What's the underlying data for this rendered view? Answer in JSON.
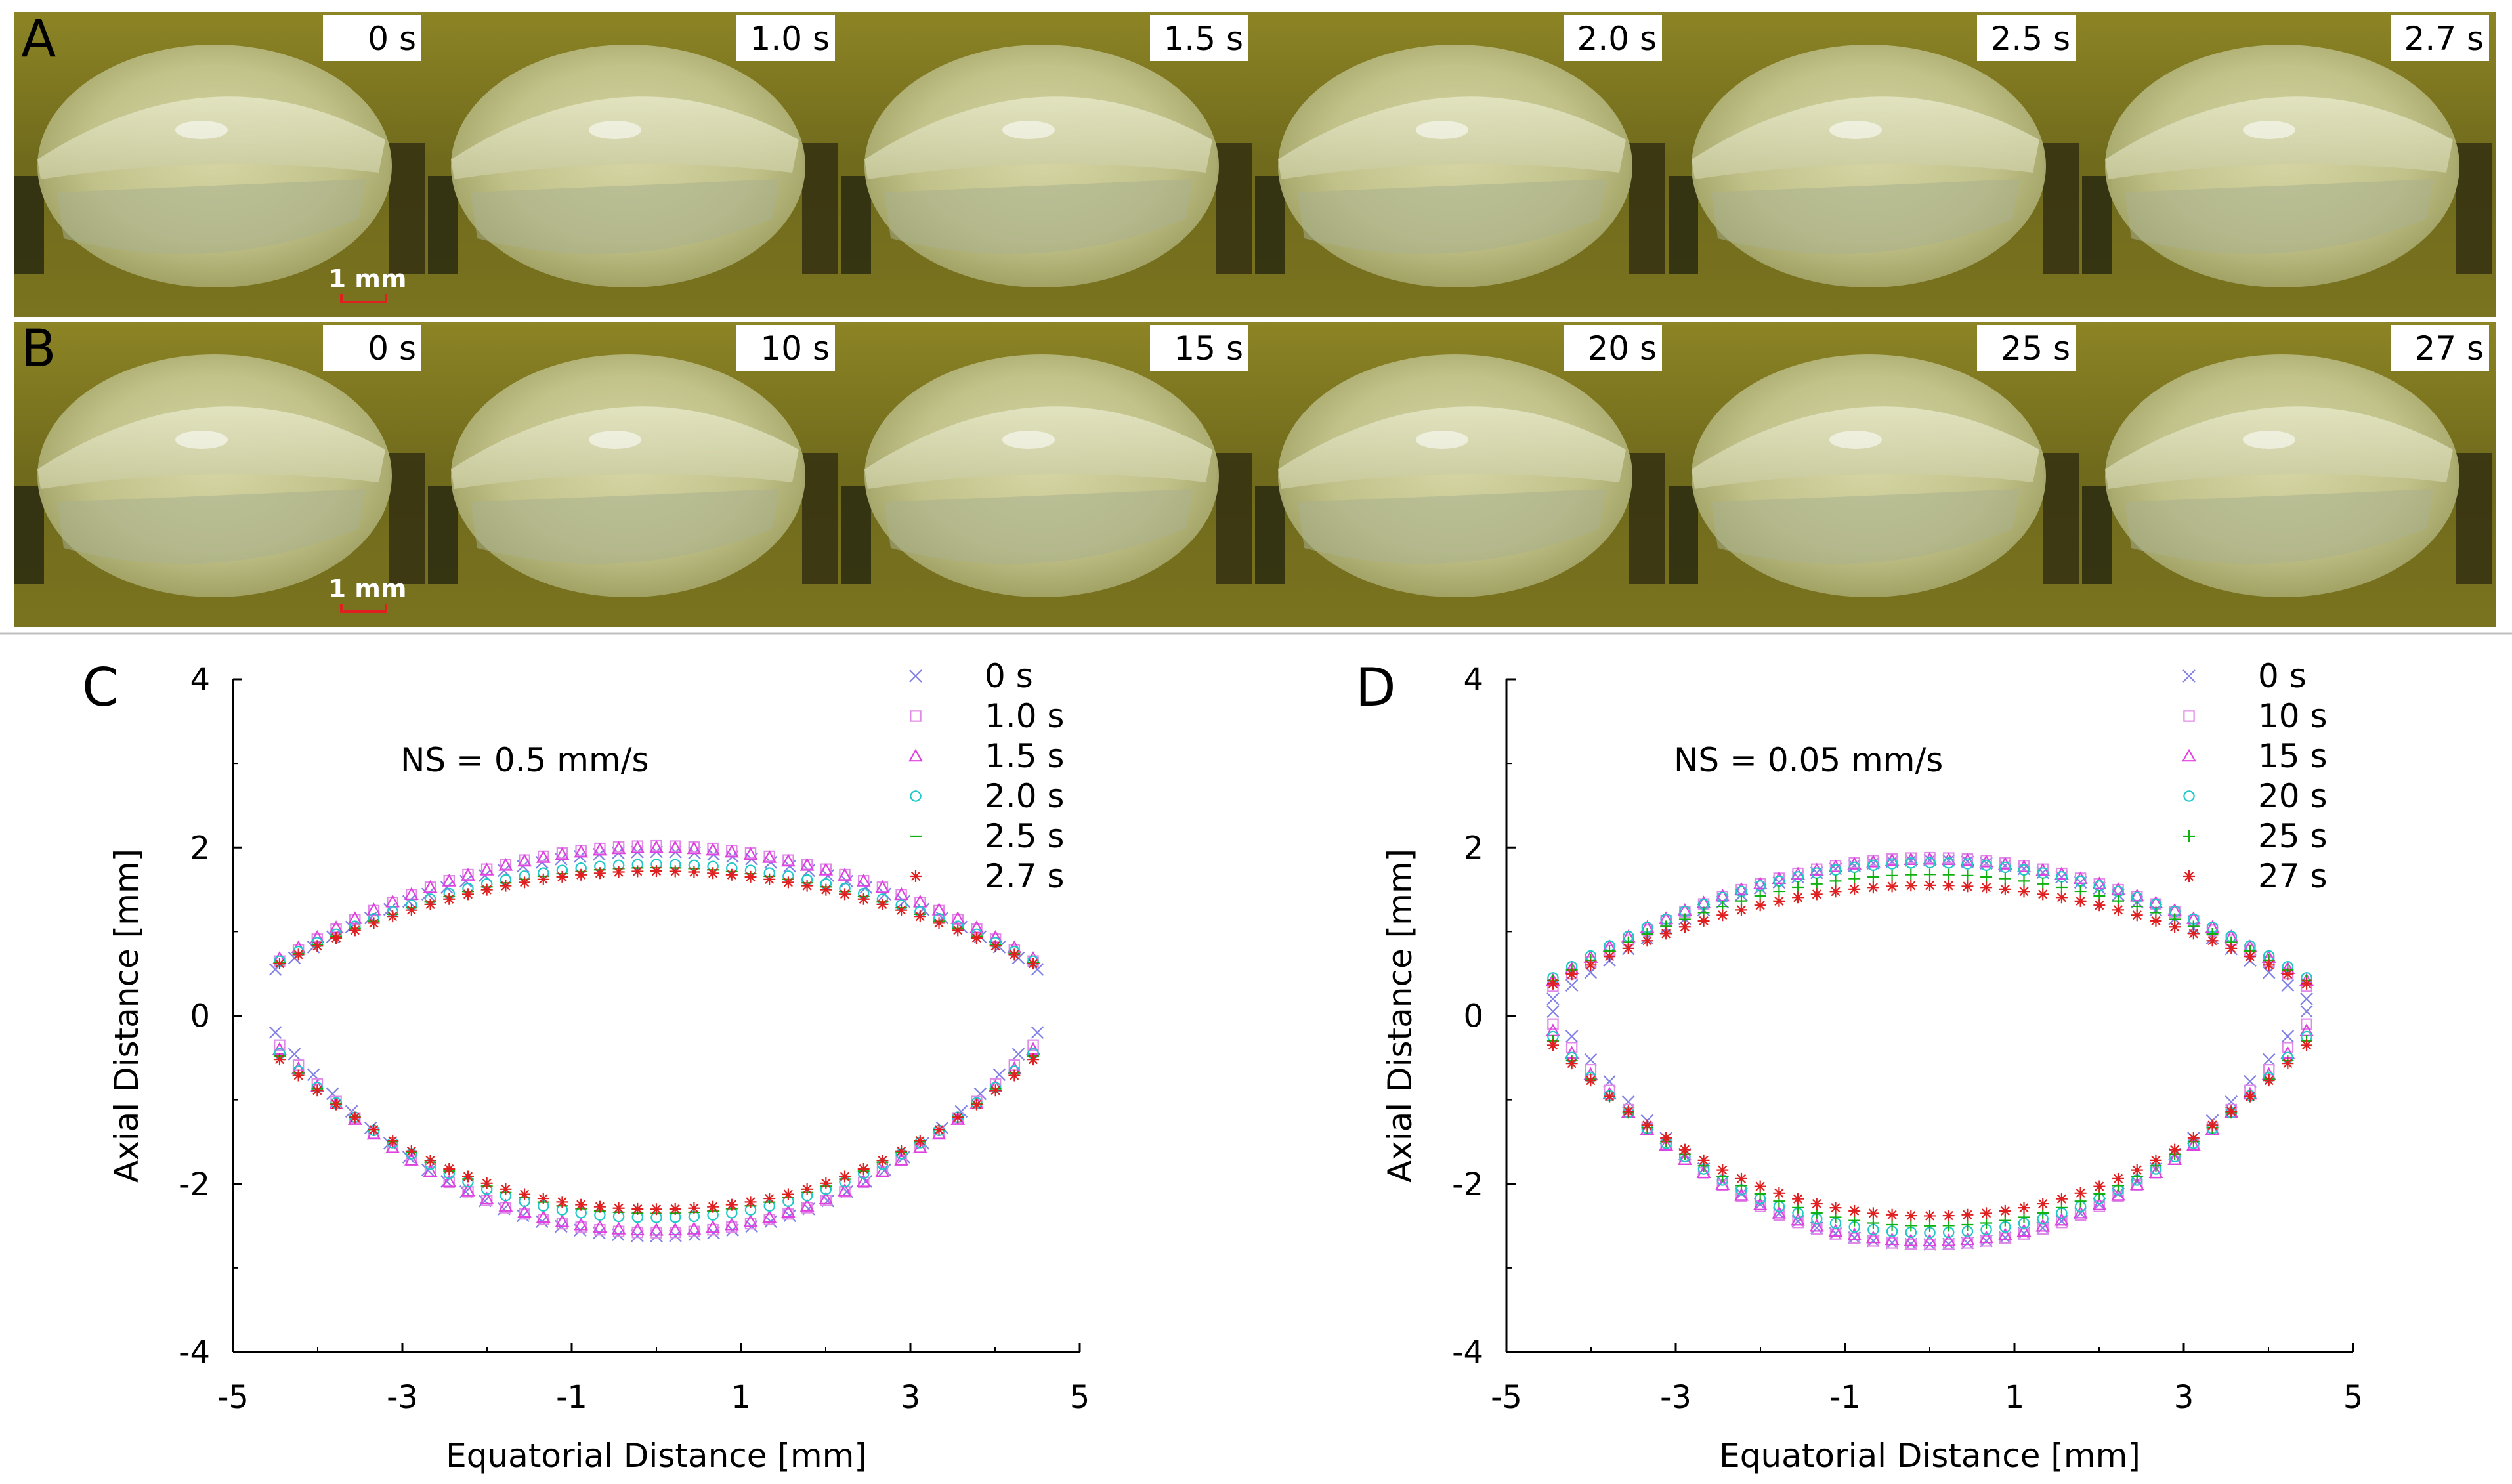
{
  "photo_rows": [
    {
      "label": "A",
      "scale_label": "1 mm",
      "frames": [
        {
          "time": "0 s"
        },
        {
          "time": "1.0 s"
        },
        {
          "time": "1.5 s"
        },
        {
          "time": "2.0 s"
        },
        {
          "time": "2.5 s"
        },
        {
          "time": "2.7 s"
        }
      ]
    },
    {
      "label": "B",
      "scale_label": "1 mm",
      "frames": [
        {
          "time": "0 s"
        },
        {
          "time": "10 s"
        },
        {
          "time": "15 s"
        },
        {
          "time": "20 s"
        },
        {
          "time": "25 s"
        },
        {
          "time": "27 s"
        }
      ]
    }
  ],
  "chart_data": [
    {
      "type": "scatter",
      "panel_label": "C",
      "annotation": "NS = 0.5 mm/s",
      "xlabel": "Equatorial Distance [mm]",
      "ylabel": "Axial Distance [mm]",
      "xlim": [
        -5,
        5
      ],
      "ylim": [
        -4,
        4
      ],
      "xticks": [
        -5,
        -3,
        -1,
        1,
        3,
        5
      ],
      "yticks": [
        -4,
        -2,
        0,
        2,
        4
      ],
      "grid": false,
      "legend_position": "top-right",
      "series": [
        {
          "name": "0 s",
          "marker": "x",
          "color": "#8080e6",
          "anterior_apex": 1.95,
          "posterior_apex": -2.62,
          "half_width": 4.5,
          "end_upper": 0.55,
          "end_lower": -0.2
        },
        {
          "name": "1.0 s",
          "marker": "square",
          "color": "#e08ae8",
          "anterior_apex": 2.02,
          "posterior_apex": -2.58,
          "half_width": 4.45,
          "end_upper": 0.65,
          "end_lower": -0.35
        },
        {
          "name": "1.5 s",
          "marker": "triangle",
          "color": "#e040e0",
          "anterior_apex": 2.0,
          "posterior_apex": -2.55,
          "half_width": 4.45,
          "end_upper": 0.68,
          "end_lower": -0.4
        },
        {
          "name": "2.0 s",
          "marker": "circle",
          "color": "#20c8c8",
          "anterior_apex": 1.8,
          "posterior_apex": -2.4,
          "half_width": 4.45,
          "end_upper": 0.65,
          "end_lower": -0.45
        },
        {
          "name": "2.5 s",
          "marker": "dash",
          "color": "#10b010",
          "anterior_apex": 1.76,
          "posterior_apex": -2.35,
          "half_width": 4.45,
          "end_upper": 0.63,
          "end_lower": -0.48
        },
        {
          "name": "2.7 s",
          "marker": "star",
          "color": "#e02020",
          "anterior_apex": 1.72,
          "posterior_apex": -2.3,
          "half_width": 4.45,
          "end_upper": 0.62,
          "end_lower": -0.52
        }
      ]
    },
    {
      "type": "scatter",
      "panel_label": "D",
      "annotation": "NS = 0.05 mm/s",
      "xlabel": "Equatorial Distance [mm]",
      "ylabel": "Axial Distance [mm]",
      "xlim": [
        -5,
        5
      ],
      "ylim": [
        -4,
        4
      ],
      "xticks": [
        -5,
        -3,
        -1,
        1,
        3,
        5
      ],
      "yticks": [
        -4,
        -2,
        0,
        2,
        4
      ],
      "grid": false,
      "legend_position": "top-right",
      "series": [
        {
          "name": "0 s",
          "marker": "x",
          "color": "#8080e6",
          "anterior_apex": 1.85,
          "posterior_apex": -2.72,
          "half_width": 4.45,
          "end_upper": 0.2,
          "end_lower": 0.05
        },
        {
          "name": "10 s",
          "marker": "square",
          "color": "#e08ae8",
          "anterior_apex": 1.88,
          "posterior_apex": -2.72,
          "half_width": 4.45,
          "end_upper": 0.35,
          "end_lower": -0.1
        },
        {
          "name": "15 s",
          "marker": "triangle",
          "color": "#e040e0",
          "anterior_apex": 1.86,
          "posterior_apex": -2.68,
          "half_width": 4.45,
          "end_upper": 0.42,
          "end_lower": -0.18
        },
        {
          "name": "20 s",
          "marker": "circle",
          "color": "#20c8c8",
          "anterior_apex": 1.82,
          "posterior_apex": -2.58,
          "half_width": 4.45,
          "end_upper": 0.45,
          "end_lower": -0.25
        },
        {
          "name": "25 s",
          "marker": "plus",
          "color": "#10b010",
          "anterior_apex": 1.68,
          "posterior_apex": -2.5,
          "half_width": 4.45,
          "end_upper": 0.42,
          "end_lower": -0.3
        },
        {
          "name": "27 s",
          "marker": "star",
          "color": "#e02020",
          "anterior_apex": 1.55,
          "posterior_apex": -2.38,
          "half_width": 4.45,
          "end_upper": 0.38,
          "end_lower": -0.35
        }
      ]
    }
  ]
}
